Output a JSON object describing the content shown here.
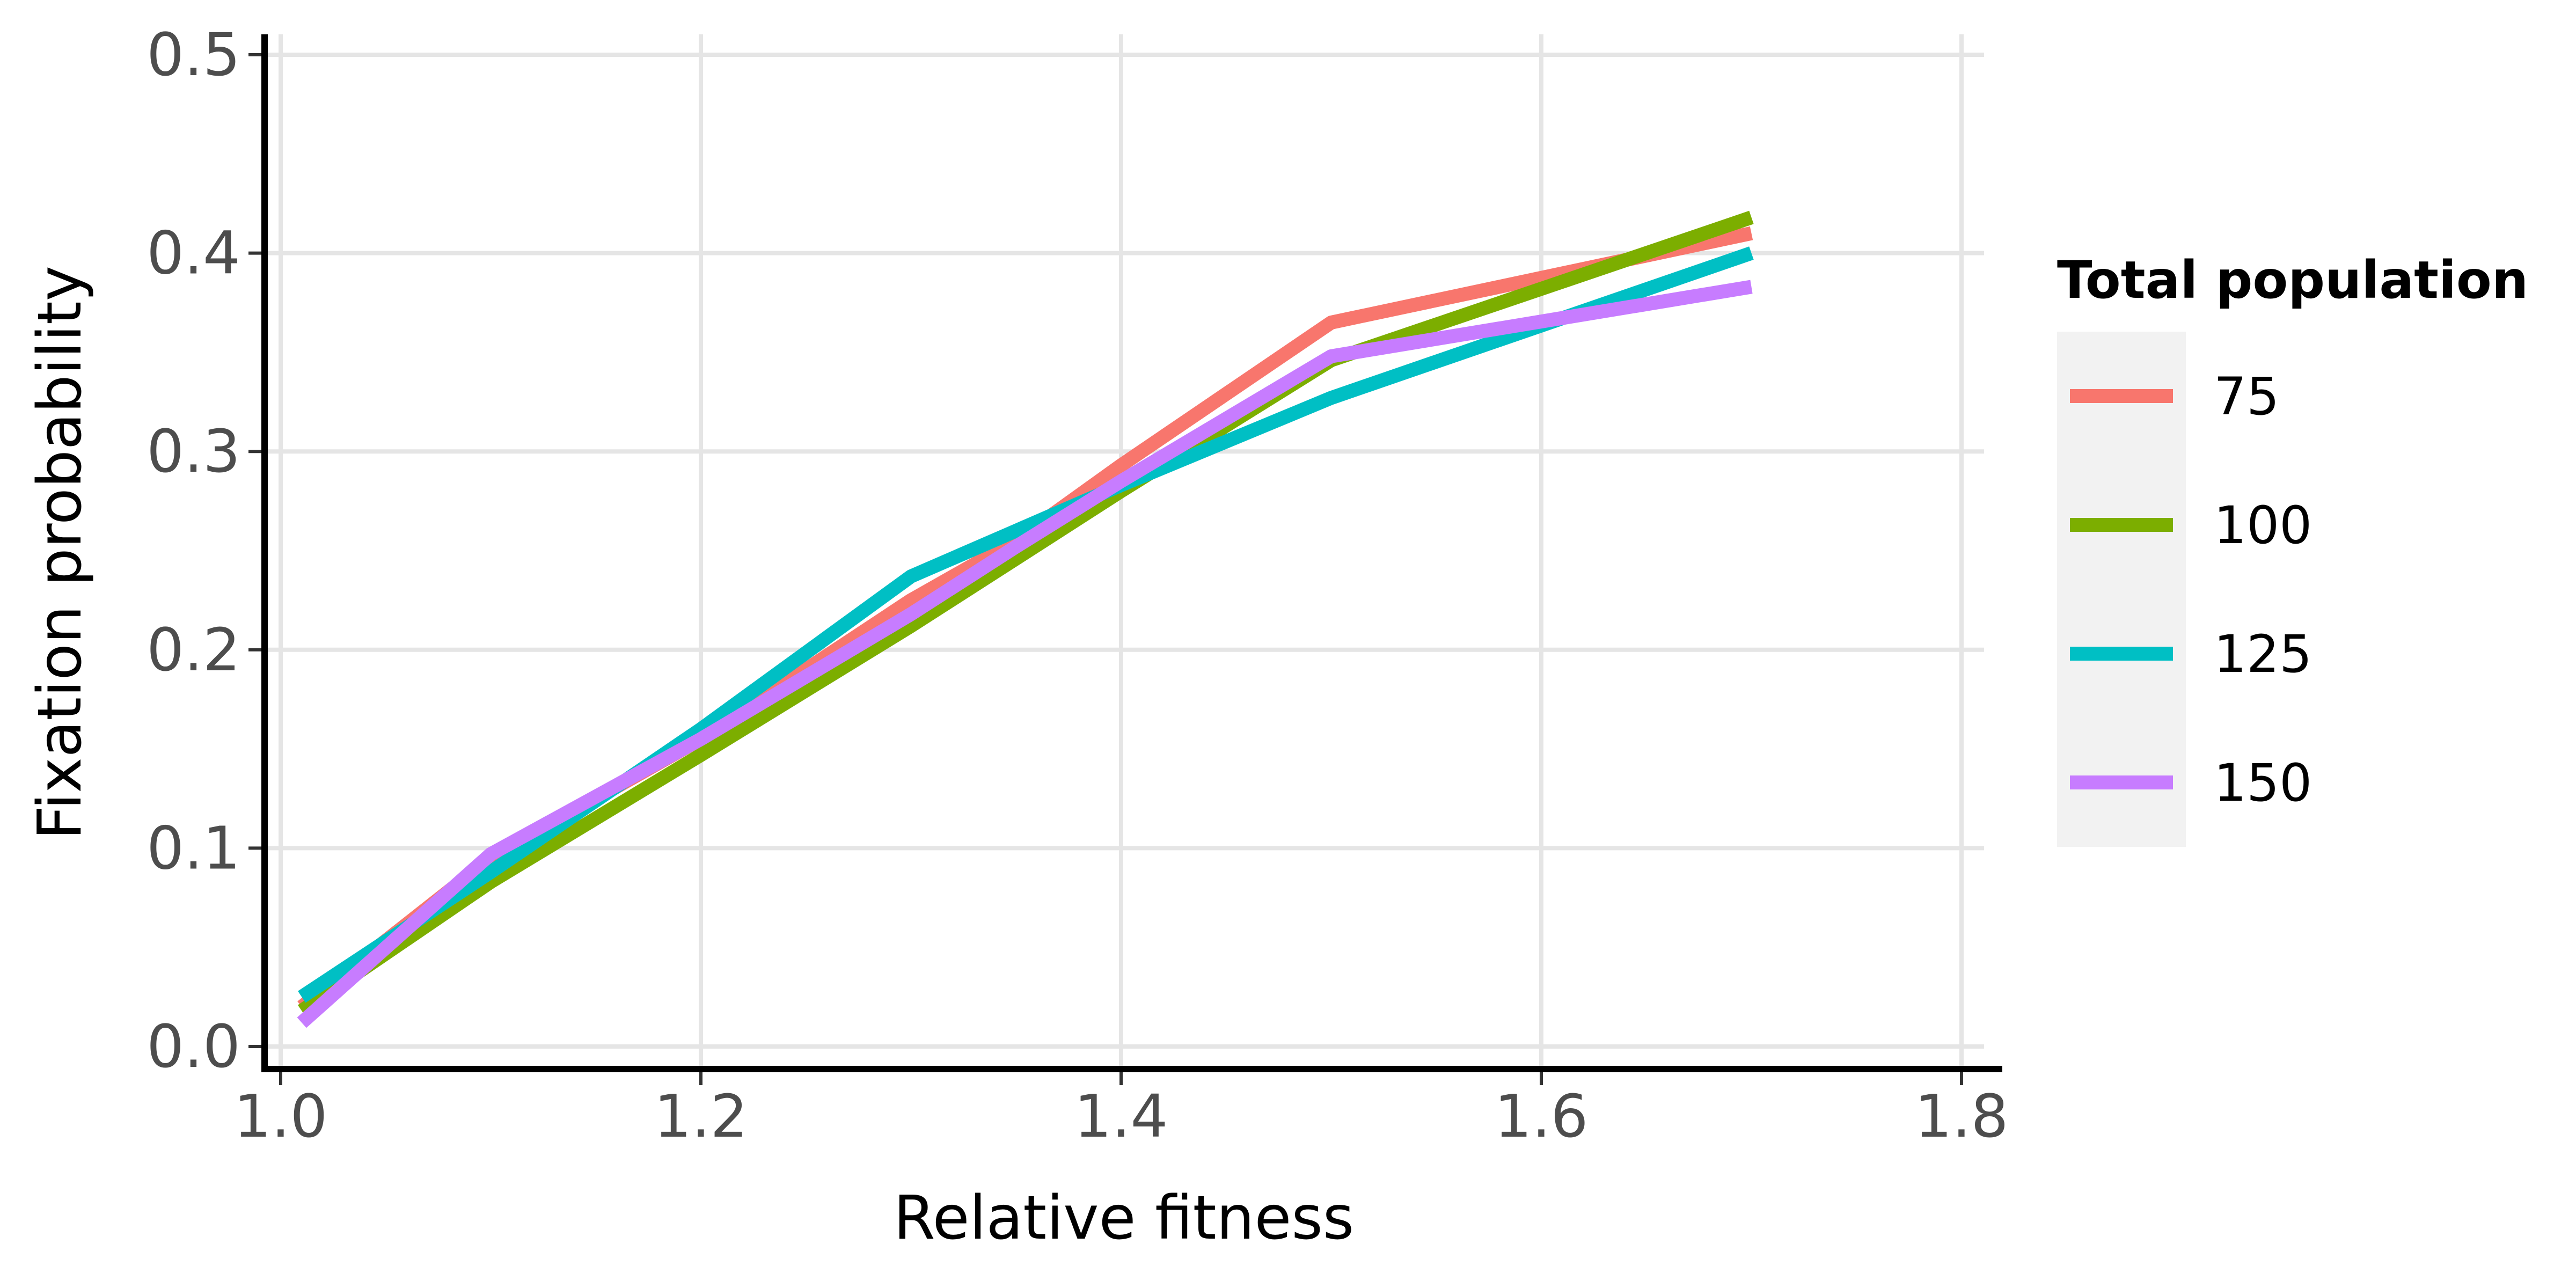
{
  "chart_data": {
    "type": "line",
    "title": "",
    "xlabel": "Relative fitness",
    "ylabel": "Fixation probability",
    "xlim": [
      1.0,
      1.8
    ],
    "ylim": [
      0.0,
      0.5
    ],
    "xticks": [
      1.0,
      1.2,
      1.4,
      1.6,
      1.8
    ],
    "yticks": [
      0.0,
      0.1,
      0.2,
      0.3,
      0.4,
      0.5
    ],
    "xtick_labels": [
      "1.0",
      "1.2",
      "1.4",
      "1.6",
      "1.8"
    ],
    "ytick_labels": [
      "0.0",
      "0.1",
      "0.2",
      "0.3",
      "0.4",
      "0.5"
    ],
    "grid": true,
    "legend": {
      "title": "Total population",
      "position": "right"
    },
    "series": [
      {
        "name": "75",
        "color": "#F8766D",
        "x": [
          1.01,
          1.1,
          1.2,
          1.3,
          1.35,
          1.4,
          1.5,
          1.7
        ],
        "y": [
          0.02,
          0.095,
          0.155,
          0.225,
          0.255,
          0.293,
          0.365,
          0.41
        ]
      },
      {
        "name": "100",
        "color": "#7CAE00",
        "x": [
          1.01,
          1.1,
          1.2,
          1.3,
          1.35,
          1.4,
          1.5,
          1.7
        ],
        "y": [
          0.018,
          0.083,
          0.147,
          0.212,
          0.246,
          0.28,
          0.346,
          0.418
        ]
      },
      {
        "name": "125",
        "color": "#00BFC4",
        "x": [
          1.01,
          1.1,
          1.2,
          1.3,
          1.35,
          1.4,
          1.5,
          1.7
        ],
        "y": [
          0.025,
          0.088,
          0.16,
          0.237,
          0.26,
          0.283,
          0.327,
          0.4
        ]
      },
      {
        "name": "150",
        "color": "#C77CFF",
        "x": [
          1.01,
          1.1,
          1.2,
          1.3,
          1.35,
          1.4,
          1.5,
          1.7
        ],
        "y": [
          0.012,
          0.097,
          0.155,
          0.218,
          0.252,
          0.285,
          0.348,
          0.383
        ]
      }
    ]
  }
}
